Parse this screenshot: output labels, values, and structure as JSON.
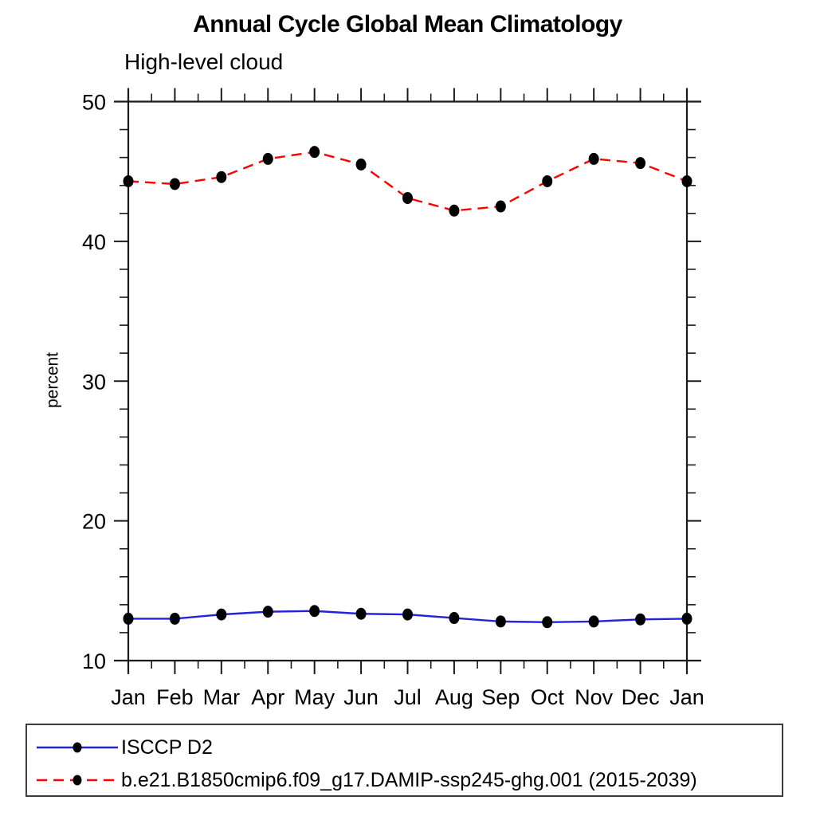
{
  "chart_data": {
    "type": "line",
    "title": "Annual Cycle Global Mean Climatology",
    "subtitle": "High-level cloud",
    "ylabel": "percent",
    "xlabel": "",
    "categories": [
      "Jan",
      "Feb",
      "Mar",
      "Apr",
      "May",
      "Jun",
      "Jul",
      "Aug",
      "Sep",
      "Oct",
      "Nov",
      "Dec",
      "Jan"
    ],
    "ylim": [
      10,
      50
    ],
    "y_major_ticks": [
      10,
      20,
      30,
      40,
      50
    ],
    "y_minor_step": 2,
    "x_minor_ticks": "midpoints-between-months",
    "grid": false,
    "frame": "box-with-outward-ticks",
    "legend_position": "bottom-left-box",
    "axis_color": "#1a1a1a",
    "marker_color": "#000000",
    "series": [
      {
        "name": "ISCCP D2",
        "color": "#2323dd",
        "style": "solid",
        "marker": "filled-circle",
        "values": [
          13.0,
          13.0,
          13.3,
          13.5,
          13.55,
          13.35,
          13.3,
          13.05,
          12.8,
          12.75,
          12.8,
          12.95,
          13.0
        ]
      },
      {
        "name": "b.e21.B1850cmip6.f09_g17.DAMIP-ssp245-ghg.001 (2015-2039)",
        "color": "#ff0000",
        "style": "dashed",
        "marker": "filled-circle",
        "values": [
          44.3,
          44.1,
          44.6,
          45.9,
          46.4,
          45.5,
          43.1,
          42.2,
          42.5,
          44.3,
          45.9,
          45.6,
          44.3
        ]
      }
    ]
  }
}
